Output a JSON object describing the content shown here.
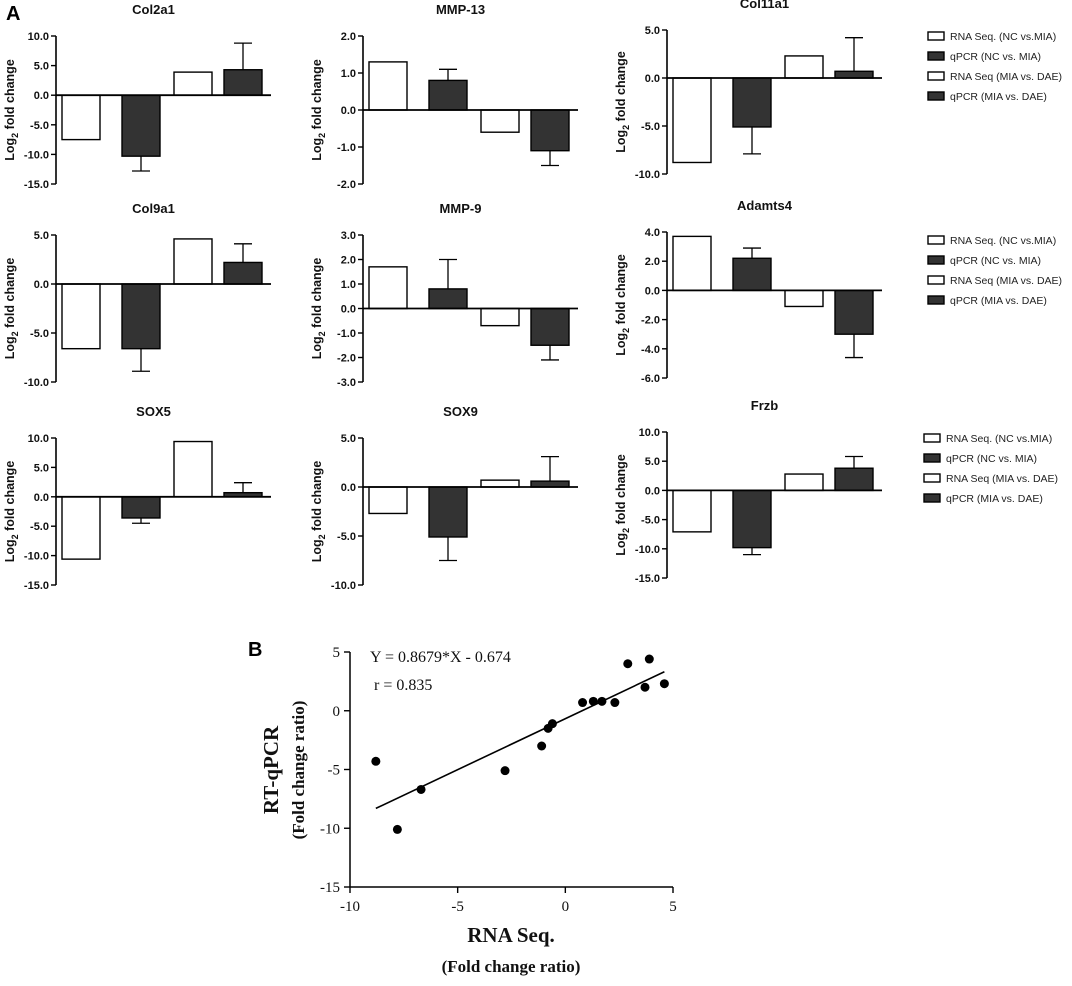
{
  "panel_labels": {
    "a": "A",
    "b": "B"
  },
  "colors": {
    "rna": "#ffffff",
    "qpcr": "#333333",
    "stroke": "#000000",
    "point": "#000000"
  },
  "legend_groups": [
    [
      "RNA Seq. (NC vs.MIA)",
      "qPCR (NC vs. MIA)",
      "RNA Seq (MIA vs. DAE)",
      "qPCR (MIA vs. DAE)"
    ],
    [
      "RNA Seq. (NC vs.MIA)",
      "qPCR (NC vs. MIA)",
      "RNA Seq (MIA vs. DAE)",
      "qPCR (MIA vs. DAE)"
    ],
    [
      "RNA Seq. (NC vs.MIA)",
      "qPCR (NC vs. MIA)",
      "RNA Seq (MIA vs. DAE)",
      "qPCR (MIA vs. DAE)"
    ]
  ],
  "chart_data": [
    {
      "type": "bar",
      "title": "Col2a1",
      "ylabel": "Log2 fold change",
      "ylim": [
        -15,
        10
      ],
      "yticks": [
        -15,
        -10,
        -5,
        0,
        5,
        10
      ],
      "tick_decimals": 1,
      "series": [
        {
          "name": "RNA Seq. (NC vs.MIA)",
          "values": [
            -7.5
          ]
        },
        {
          "name": "qPCR (NC vs. MIA)",
          "values": [
            -10.3
          ],
          "error": [
            2.5
          ]
        },
        {
          "name": "RNA Seq (MIA vs. DAE)",
          "values": [
            3.9
          ]
        },
        {
          "name": "qPCR (MIA vs. DAE)",
          "values": [
            4.3
          ],
          "error": [
            4.5
          ]
        }
      ]
    },
    {
      "type": "bar",
      "title": "MMP-13",
      "ylabel": "Log2 fold change",
      "ylim": [
        -2,
        2
      ],
      "yticks": [
        -2,
        -1,
        0,
        1,
        2
      ],
      "tick_decimals": 1,
      "series": [
        {
          "name": "RNA Seq. (NC vs.MIA)",
          "values": [
            1.3
          ]
        },
        {
          "name": "qPCR (NC vs. MIA)",
          "values": [
            0.8
          ],
          "error": [
            0.3
          ]
        },
        {
          "name": "RNA Seq (MIA vs. DAE)",
          "values": [
            -0.6
          ]
        },
        {
          "name": "qPCR (MIA vs. DAE)",
          "values": [
            -1.1
          ],
          "error": [
            0.4
          ]
        }
      ]
    },
    {
      "type": "bar",
      "title": "Col11a1",
      "ylabel": "Log2 fold change",
      "ylim": [
        -10,
        5
      ],
      "yticks": [
        -10,
        -5,
        0,
        5
      ],
      "tick_decimals": 1,
      "series": [
        {
          "name": "RNA Seq. (NC vs.MIA)",
          "values": [
            -8.8
          ]
        },
        {
          "name": "qPCR (NC vs. MIA)",
          "values": [
            -5.1
          ],
          "error": [
            2.8
          ]
        },
        {
          "name": "RNA Seq (MIA vs. DAE)",
          "values": [
            2.3
          ]
        },
        {
          "name": "qPCR (MIA vs. DAE)",
          "values": [
            0.7
          ],
          "error": [
            3.5
          ]
        }
      ]
    },
    {
      "type": "bar",
      "title": "Col9a1",
      "ylabel": "Log2 fold change",
      "ylim": [
        -10,
        5
      ],
      "yticks": [
        -10,
        -5,
        0,
        5
      ],
      "tick_decimals": 1,
      "series": [
        {
          "name": "RNA Seq. (NC vs.MIA)",
          "values": [
            -6.6
          ]
        },
        {
          "name": "qPCR (NC vs. MIA)",
          "values": [
            -6.6
          ],
          "error": [
            2.3
          ]
        },
        {
          "name": "RNA Seq (MIA vs. DAE)",
          "values": [
            4.6
          ]
        },
        {
          "name": "qPCR (MIA vs. DAE)",
          "values": [
            2.2
          ],
          "error": [
            1.9
          ]
        }
      ]
    },
    {
      "type": "bar",
      "title": "MMP-9",
      "ylabel": "Log2 fold change",
      "ylim": [
        -3,
        3
      ],
      "yticks": [
        -3,
        -2,
        -1,
        0,
        1,
        2,
        3
      ],
      "tick_decimals": 1,
      "series": [
        {
          "name": "RNA Seq. (NC vs.MIA)",
          "values": [
            1.7
          ]
        },
        {
          "name": "qPCR (NC vs. MIA)",
          "values": [
            0.8
          ],
          "error": [
            1.2
          ]
        },
        {
          "name": "RNA Seq (MIA vs. DAE)",
          "values": [
            -0.7
          ]
        },
        {
          "name": "qPCR (MIA vs. DAE)",
          "values": [
            -1.5
          ],
          "error": [
            0.6
          ]
        }
      ]
    },
    {
      "type": "bar",
      "title": "Adamts4",
      "ylabel": "Log2 fold change",
      "ylim": [
        -6,
        4
      ],
      "yticks": [
        -6,
        -4,
        -2,
        0,
        2,
        4
      ],
      "tick_decimals": 1,
      "series": [
        {
          "name": "RNA Seq. (NC vs.MIA)",
          "values": [
            3.7
          ]
        },
        {
          "name": "qPCR (NC vs. MIA)",
          "values": [
            2.2
          ],
          "error": [
            0.7
          ]
        },
        {
          "name": "RNA Seq (MIA vs. DAE)",
          "values": [
            -1.1
          ]
        },
        {
          "name": "qPCR (MIA vs. DAE)",
          "values": [
            -3.0
          ],
          "error": [
            1.6
          ]
        }
      ]
    },
    {
      "type": "bar",
      "title": "SOX5",
      "ylabel": "Log2 fold change",
      "ylim": [
        -15,
        10
      ],
      "yticks": [
        -15,
        -10,
        -5,
        0,
        5,
        10
      ],
      "tick_decimals": 1,
      "series": [
        {
          "name": "RNA Seq. (NC vs.MIA)",
          "values": [
            -10.6
          ]
        },
        {
          "name": "qPCR (NC vs. MIA)",
          "values": [
            -3.6
          ],
          "error": [
            0.9
          ]
        },
        {
          "name": "RNA Seq (MIA vs. DAE)",
          "values": [
            9.4
          ]
        },
        {
          "name": "qPCR (MIA vs. DAE)",
          "values": [
            0.7
          ],
          "error": [
            1.7
          ]
        }
      ]
    },
    {
      "type": "bar",
      "title": "SOX9",
      "ylabel": "Log2 fold change",
      "ylim": [
        -10,
        5
      ],
      "yticks": [
        -10,
        -5,
        0,
        5
      ],
      "tick_decimals": 1,
      "series": [
        {
          "name": "RNA Seq. (NC vs.MIA)",
          "values": [
            -2.7
          ]
        },
        {
          "name": "qPCR (NC vs. MIA)",
          "values": [
            -5.1
          ],
          "error": [
            2.4
          ]
        },
        {
          "name": "RNA Seq (MIA vs. DAE)",
          "values": [
            0.7
          ]
        },
        {
          "name": "qPCR (MIA vs. DAE)",
          "values": [
            0.6
          ],
          "error": [
            2.5
          ]
        }
      ]
    },
    {
      "type": "bar",
      "title": "Frzb",
      "ylabel": "Log2 fold change",
      "ylim": [
        -15,
        10
      ],
      "yticks": [
        -15,
        -10,
        -5,
        0,
        5,
        10
      ],
      "tick_decimals": 1,
      "series": [
        {
          "name": "RNA Seq. (NC vs.MIA)",
          "values": [
            -7.1
          ]
        },
        {
          "name": "qPCR (NC vs. MIA)",
          "values": [
            -9.8
          ],
          "error": [
            1.2
          ]
        },
        {
          "name": "RNA Seq (MIA vs. DAE)",
          "values": [
            2.8
          ]
        },
        {
          "name": "qPCR (MIA vs. DAE)",
          "values": [
            3.8
          ],
          "error": [
            2.0
          ]
        }
      ]
    },
    {
      "type": "scatter",
      "xlabel": "RNA Seq.",
      "xlabel_sub": "(Fold change ratio)",
      "ylabel": "RT-qPCR",
      "ylabel_sub": "(Fold change ratio)",
      "xlim": [
        -10,
        5
      ],
      "ylim": [
        -15,
        5
      ],
      "xticks": [
        -10,
        -5,
        0,
        5
      ],
      "yticks": [
        -15,
        -10,
        -5,
        0,
        5
      ],
      "equation": "Y = 0.8679*X - 0.674",
      "r_text": "r = 0.835",
      "regression": {
        "slope": 0.8679,
        "intercept": -0.674,
        "x_range": [
          -8.8,
          4.6
        ]
      },
      "points": [
        {
          "x": -8.8,
          "y": -4.3
        },
        {
          "x": -7.8,
          "y": -10.1
        },
        {
          "x": -6.7,
          "y": -6.7
        },
        {
          "x": -2.8,
          "y": -5.1
        },
        {
          "x": -1.1,
          "y": -3.0
        },
        {
          "x": -0.8,
          "y": -1.5
        },
        {
          "x": -0.6,
          "y": -1.1
        },
        {
          "x": 0.8,
          "y": 0.7
        },
        {
          "x": 1.3,
          "y": 0.8
        },
        {
          "x": 1.7,
          "y": 0.8
        },
        {
          "x": 2.3,
          "y": 0.7
        },
        {
          "x": 2.9,
          "y": 4.0
        },
        {
          "x": 3.7,
          "y": 2.0
        },
        {
          "x": 3.9,
          "y": 4.4
        },
        {
          "x": 4.6,
          "y": 2.3
        }
      ]
    }
  ]
}
